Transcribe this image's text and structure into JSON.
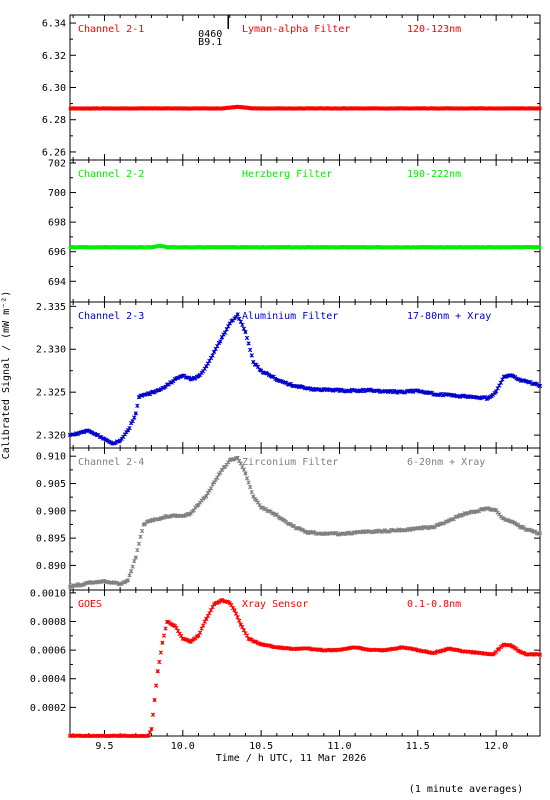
{
  "figure": {
    "xlabel": "Time / h UTC, 11 Mar 2026",
    "ylabel": "Calibrated Signal / (mW m⁻²)",
    "footnote": "(1 minute averages)",
    "flare_marker": {
      "code": "0460",
      "class": "B9.1",
      "x": 10.29
    }
  },
  "chart_data": [
    {
      "type": "scatter",
      "channel": "Channel 2-1",
      "filter": "Lyman-alpha Filter",
      "band": "120-123nm",
      "color": "#ff0000",
      "xlim": [
        9.28,
        12.28
      ],
      "ylim": [
        6.255,
        6.345
      ],
      "yticks": [
        "6.26",
        "6.28",
        "6.30",
        "6.32",
        "6.34"
      ],
      "x": [
        9.28,
        10.2,
        10.25,
        10.35,
        10.45,
        11.5,
        12.28
      ],
      "y": [
        6.287,
        6.287,
        6.287,
        6.288,
        6.287,
        6.287,
        6.287
      ]
    },
    {
      "type": "scatter",
      "channel": "Channel 2-2",
      "filter": "Herzberg Filter",
      "band": "190-222nm",
      "color": "#00ee00",
      "xlim": [
        9.28,
        12.28
      ],
      "ylim": [
        692.6,
        702.2
      ],
      "yticks": [
        "694",
        "696",
        "698",
        "700",
        "702"
      ],
      "x": [
        9.28,
        9.8,
        9.85,
        9.9,
        10.5,
        11.5,
        12.28
      ],
      "y": [
        696.3,
        696.3,
        696.4,
        696.3,
        696.3,
        696.3,
        696.3
      ]
    },
    {
      "type": "scatter",
      "channel": "Channel 2-3",
      "filter": "Aluminium Filter",
      "band": "17-80nm + Xray",
      "color": "#0000cc",
      "xlim": [
        9.28,
        12.28
      ],
      "ylim": [
        2.3185,
        2.3355
      ],
      "yticks": [
        "2.320",
        "2.325",
        "2.330",
        "2.335"
      ],
      "x": [
        9.28,
        9.4,
        9.45,
        9.5,
        9.55,
        9.6,
        9.65,
        9.7,
        9.72,
        9.75,
        9.8,
        9.85,
        9.9,
        9.95,
        10.0,
        10.05,
        10.1,
        10.15,
        10.2,
        10.25,
        10.3,
        10.35,
        10.4,
        10.45,
        10.5,
        10.6,
        10.7,
        10.8,
        11.0,
        11.2,
        11.4,
        11.5,
        11.6,
        11.8,
        11.95,
        12.0,
        12.05,
        12.1,
        12.15,
        12.2,
        12.28
      ],
      "y": [
        2.32,
        2.3205,
        2.3201,
        2.3195,
        2.319,
        2.3193,
        2.3205,
        2.3225,
        2.3245,
        2.3247,
        2.3249,
        2.3252,
        2.3258,
        2.3265,
        2.327,
        2.3265,
        2.3268,
        2.328,
        2.3297,
        2.3313,
        2.333,
        2.334,
        2.332,
        2.3285,
        2.3275,
        2.3265,
        2.3258,
        2.3254,
        2.3252,
        2.3252,
        2.325,
        2.3252,
        2.3248,
        2.3245,
        2.3243,
        2.325,
        2.3268,
        2.327,
        2.3264,
        2.3262,
        2.3258
      ]
    },
    {
      "type": "scatter",
      "channel": "Channel 2-4",
      "filter": "Zirconium Filter",
      "band": "6-20nm + Xray",
      "color": "#808080",
      "xlim": [
        9.28,
        12.28
      ],
      "ylim": [
        0.8855,
        0.9115
      ],
      "yticks": [
        "0.890",
        "0.895",
        "0.900",
        "0.905",
        "0.910"
      ],
      "x": [
        9.28,
        9.35,
        9.4,
        9.45,
        9.5,
        9.55,
        9.6,
        9.65,
        9.7,
        9.75,
        9.8,
        9.85,
        9.9,
        9.95,
        10.0,
        10.05,
        10.1,
        10.15,
        10.2,
        10.25,
        10.3,
        10.35,
        10.4,
        10.45,
        10.5,
        10.6,
        10.7,
        10.8,
        11.0,
        11.2,
        11.4,
        11.5,
        11.6,
        11.8,
        11.95,
        12.0,
        12.05,
        12.1,
        12.15,
        12.2,
        12.28
      ],
      "y": [
        0.8862,
        0.8865,
        0.8868,
        0.887,
        0.8872,
        0.8868,
        0.8866,
        0.8872,
        0.8915,
        0.8975,
        0.8983,
        0.8985,
        0.899,
        0.8992,
        0.899,
        0.8995,
        0.9012,
        0.9028,
        0.9052,
        0.9075,
        0.9092,
        0.9098,
        0.9068,
        0.9025,
        0.9007,
        0.8992,
        0.8972,
        0.896,
        0.8958,
        0.8962,
        0.8965,
        0.8968,
        0.897,
        0.8995,
        0.9005,
        0.9,
        0.8985,
        0.898,
        0.8972,
        0.8965,
        0.8958
      ]
    },
    {
      "type": "scatter",
      "channel": "GOES",
      "filter": "Xray Sensor",
      "band": "0.1-0.8nm",
      "color": "#ff0000",
      "xlim": [
        9.28,
        12.28
      ],
      "ylim": [
        0.0,
        0.00102
      ],
      "yticks": [
        "0.0002",
        "0.0004",
        "0.0006",
        "0.0008",
        "0.0010"
      ],
      "x": [
        9.28,
        9.5,
        9.7,
        9.78,
        9.8,
        9.82,
        9.84,
        9.87,
        9.9,
        9.95,
        10.0,
        10.05,
        10.1,
        10.15,
        10.2,
        10.25,
        10.3,
        10.33,
        10.37,
        10.42,
        10.5,
        10.6,
        10.7,
        10.8,
        10.9,
        11.0,
        11.1,
        11.2,
        11.3,
        11.4,
        11.5,
        11.6,
        11.7,
        11.8,
        11.9,
        11.98,
        12.05,
        12.1,
        12.15,
        12.2,
        12.28
      ],
      "y": [
        0.0,
        0.0,
        0.0,
        0.0,
        5e-05,
        0.00025,
        0.00045,
        0.00065,
        0.0008,
        0.00077,
        0.00068,
        0.00066,
        0.0007,
        0.00082,
        0.00092,
        0.00095,
        0.00093,
        0.00088,
        0.00078,
        0.00068,
        0.00064,
        0.00062,
        0.00061,
        0.00061,
        0.0006,
        0.0006,
        0.00062,
        0.0006,
        0.0006,
        0.00062,
        0.0006,
        0.00058,
        0.00061,
        0.00059,
        0.00058,
        0.00057,
        0.00064,
        0.00063,
        0.00059,
        0.00057,
        0.00057
      ]
    }
  ],
  "xaxis": {
    "ticks": [
      "9.5",
      "10.0",
      "10.5",
      "11.0",
      "11.5",
      "12.0"
    ],
    "tick_values": [
      9.5,
      10.0,
      10.5,
      11.0,
      11.5,
      12.0
    ],
    "minor_step": 0.1
  }
}
